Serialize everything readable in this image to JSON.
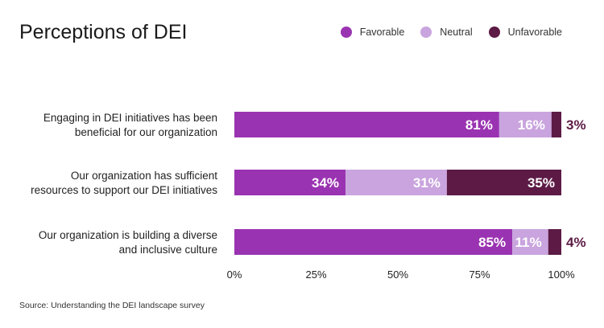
{
  "title": "Perceptions of DEI",
  "source": "Source: Understanding the DEI landscape survey",
  "chart_data": {
    "type": "bar",
    "orientation": "horizontal",
    "stacked": true,
    "title": "Perceptions of DEI",
    "categories": [
      [
        "Engaging in DEI initiatives has been",
        "beneficial for our organization"
      ],
      [
        "Our organization has sufficient",
        "resources to support our DEI initiatives"
      ],
      [
        "Our organization is building a diverse",
        "and inclusive culture"
      ]
    ],
    "series": [
      {
        "name": "Favorable",
        "color": "#9a33b1",
        "values": [
          81,
          34,
          85
        ],
        "labels": [
          "81%",
          "34%",
          "85%"
        ]
      },
      {
        "name": "Neutral",
        "color": "#c9a4de",
        "values": [
          16,
          31,
          11
        ],
        "labels": [
          "16%",
          "31%",
          "11%"
        ]
      },
      {
        "name": "Unfavorable",
        "color": "#5c1a45",
        "values": [
          3,
          35,
          4
        ],
        "labels": [
          "3%",
          "35%",
          "4%"
        ]
      }
    ],
    "xlim": [
      0,
      100
    ],
    "xticks": [
      "0%",
      "25%",
      "50%",
      "75%",
      "100%"
    ],
    "legend": "top-right",
    "grid": false
  }
}
